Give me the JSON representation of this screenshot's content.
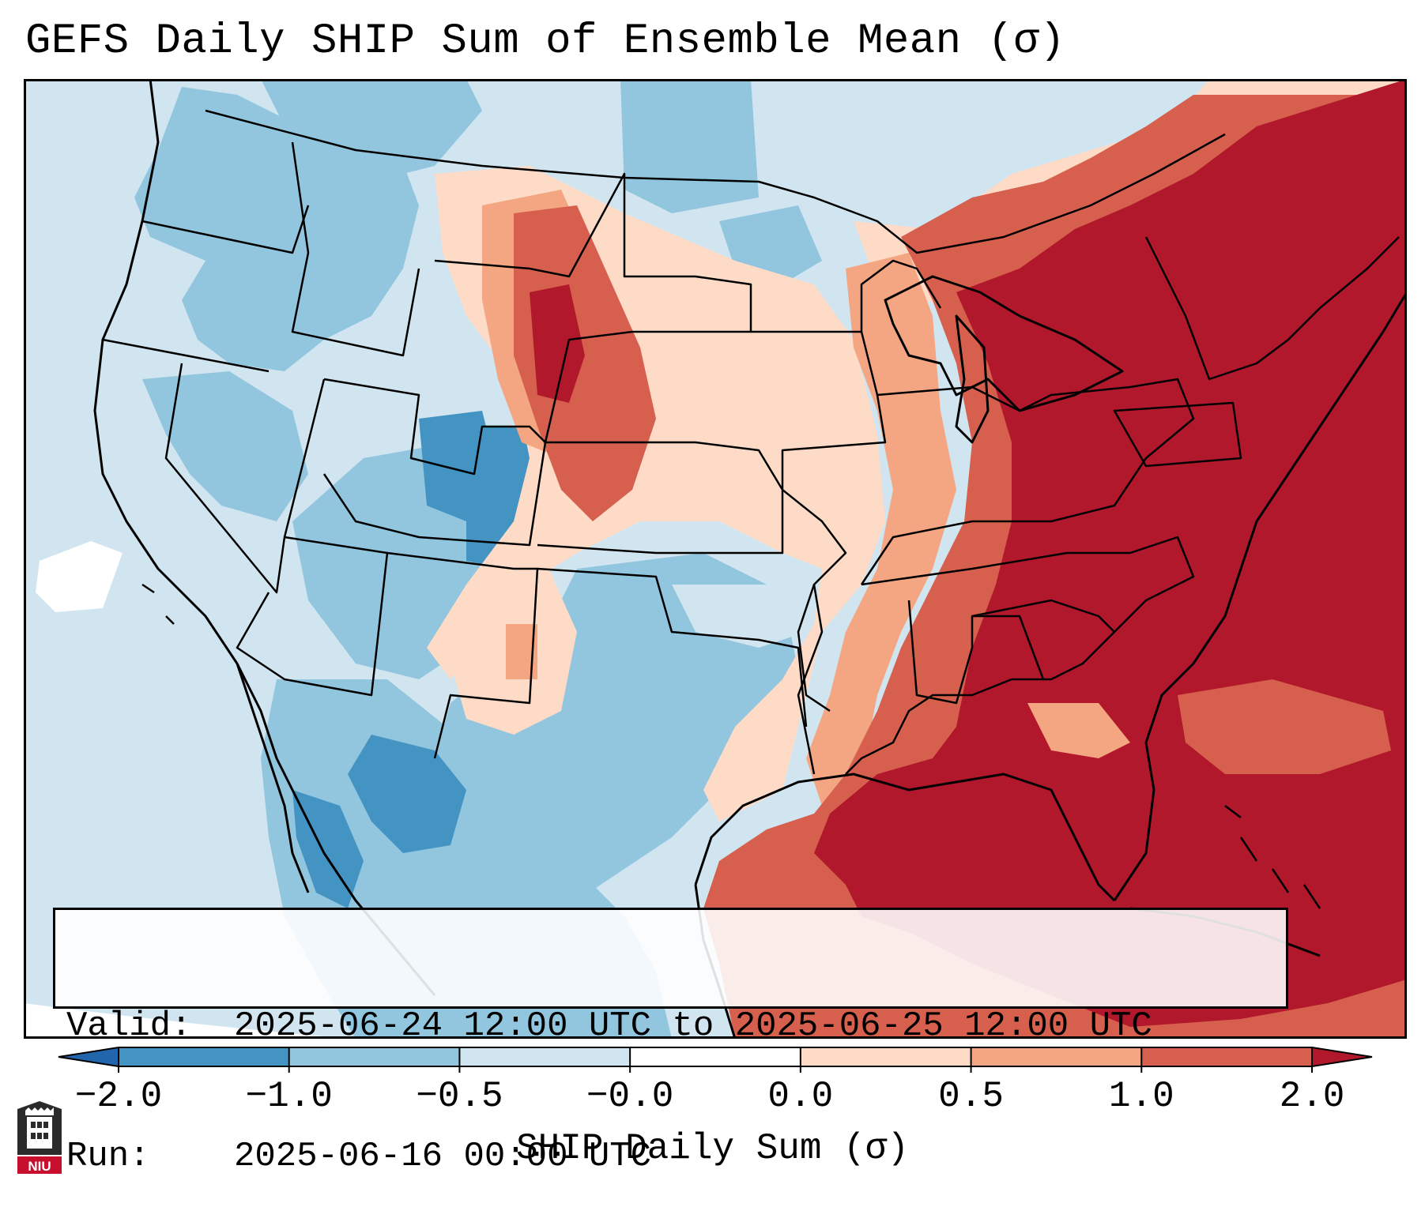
{
  "title": "GEFS Daily SHIP Sum of Ensemble Mean (σ)",
  "info": {
    "valid_label": "Valid:",
    "valid_value": "2025-06-24 12:00 UTC to 2025-06-25 12:00 UTC",
    "run_label": "Run:",
    "run_value": "2025-06-16 00:00 UTC"
  },
  "colorbar": {
    "label": "SHIP Daily Sum (σ)",
    "ticks": [
      "−2.0",
      "−1.0",
      "−0.5",
      "−0.0",
      "0.0",
      "0.5",
      "1.0",
      "2.0"
    ],
    "colors": [
      "#2166ac",
      "#4393c3",
      "#92c5de",
      "#d1e5f0",
      "#ffffff",
      "#fddbc7",
      "#f4a582",
      "#d6604d",
      "#b2182b"
    ]
  },
  "logo": {
    "text": "NIU",
    "color": "#c8102e"
  },
  "map": {
    "region": "Contiguous United States",
    "ocean_color": "#d1e5f0",
    "pattern": "below-normal (blue) over the West and Texas; above-normal (red) over the northern Plains, Midwest, Southeast, East and Gulf of Mexico"
  }
}
